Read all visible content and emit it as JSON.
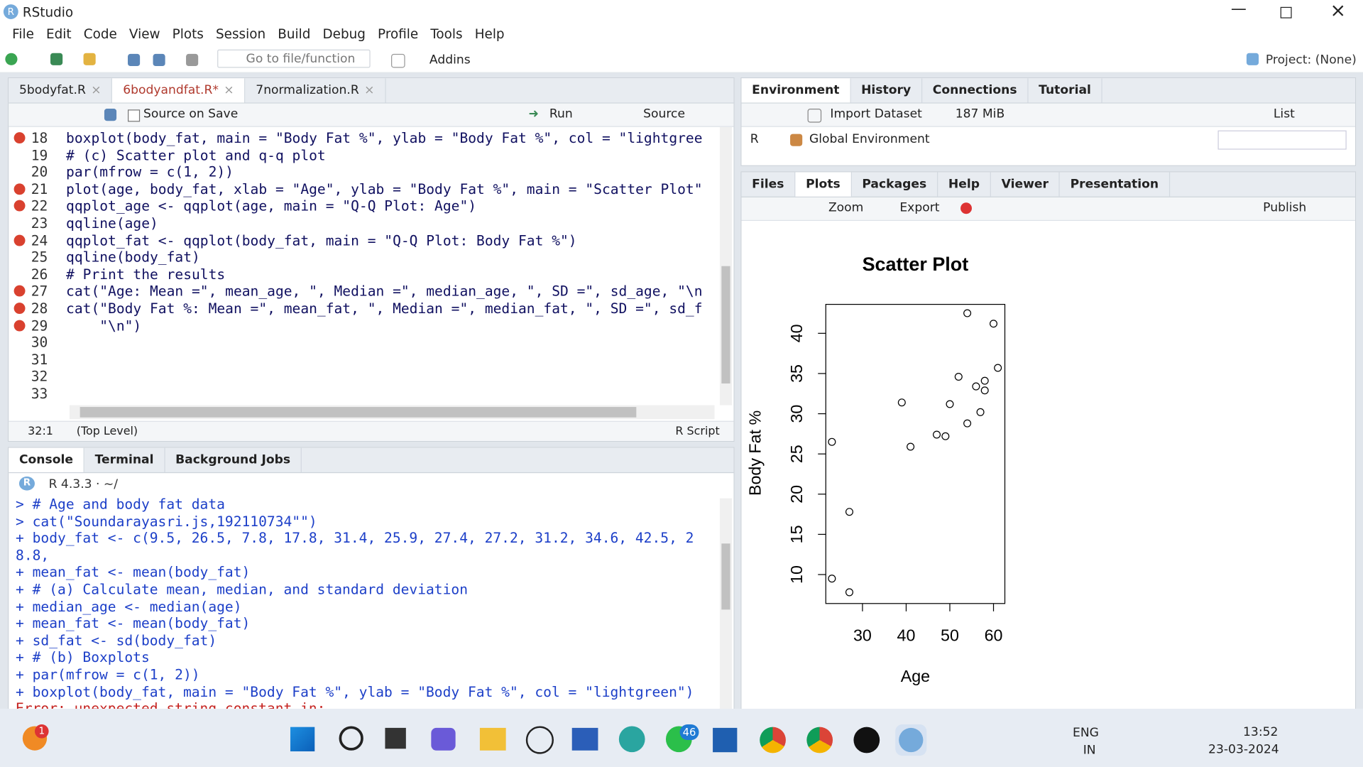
{
  "window": {
    "title": "RStudio",
    "project": "Project: (None)"
  },
  "menu": [
    "File",
    "Edit",
    "Code",
    "View",
    "Plots",
    "Session",
    "Build",
    "Debug",
    "Profile",
    "Tools",
    "Help"
  ],
  "toolbar": {
    "goto": "Go to file/function",
    "addins": "Addins"
  },
  "editor": {
    "tabs": [
      "5bodyfat.R",
      "6bodyandfat.R*",
      "7normalization.R"
    ],
    "active": 1,
    "controls": {
      "source_on_save": "Source on Save",
      "run": "Run",
      "source": "Source"
    },
    "lines": [
      {
        "n": 18,
        "code": "boxplot(body_fat, main = \"Body Fat %\", ylab = \"Body Fat %\", col = \"lightgree",
        "error": true
      },
      {
        "n": 19,
        "code": "# (c) Scatter plot and q-q plot"
      },
      {
        "n": 20,
        "code": "par(mfrow = c(1, 2))"
      },
      {
        "n": 21,
        "code": "plot(age, body_fat, xlab = \"Age\", ylab = \"Body Fat %\", main = \"Scatter Plot\"",
        "error": true
      },
      {
        "n": 22,
        "code": "qqplot_age <- qqplot(age, main = \"Q-Q Plot: Age\")",
        "error": true
      },
      {
        "n": 23,
        "code": "qqline(age)"
      },
      {
        "n": 24,
        "code": "qqplot_fat <- qqplot(body_fat, main = \"Q-Q Plot: Body Fat %\")",
        "error": true
      },
      {
        "n": 25,
        "code": "qqline(body_fat)"
      },
      {
        "n": 26,
        "code": "# Print the results"
      },
      {
        "n": 27,
        "code": "cat(\"Age: Mean =\", mean_age, \", Median =\", median_age, \", SD =\", sd_age, \"\\n",
        "error": true
      },
      {
        "n": 28,
        "code": "cat(\"Body Fat %: Mean =\", mean_fat, \", Median =\", median_fat, \", SD =\", sd_f",
        "error": true
      },
      {
        "n": 29,
        "code": "    \"\\n\")",
        "error": true
      },
      {
        "n": 30
      },
      {
        "n": 31
      },
      {
        "n": 32
      },
      {
        "n": 33
      }
    ],
    "status": {
      "position": "32:1",
      "scope": "(Top Level)",
      "filetype": "R Script"
    }
  },
  "console": {
    "tabs": [
      "Console",
      "Terminal",
      "Background Jobs"
    ],
    "version": "R 4.3.3 · ~/",
    "lines": [
      "> # Age and body fat data",
      "> cat(\"Soundarayasri.js,192110734\"\")",
      "+ body_fat <- c(9.5, 26.5, 7.8, 17.8, 31.4, 25.9, 27.4, 27.2, 31.2, 34.6, 42.5, 2",
      "8.8,",
      "+ mean_fat <- mean(body_fat)",
      "+ # (a) Calculate mean, median, and standard deviation",
      "+ median_age <- median(age)",
      "+ mean_fat <- mean(body_fat)",
      "+ sd_fat <- sd(body_fat)",
      "+ # (b) Boxplots",
      "+ par(mfrow = c(1, 2))",
      "+ boxplot(body_fat, main = \"Body Fat %\", ylab = \"Body Fat %\", col = \"lightgreen\")"
    ],
    "error": "Error: unexpected string constant in:"
  },
  "environment": {
    "tabs": [
      "Environment",
      "History",
      "Connections",
      "Tutorial"
    ],
    "import": "Import Dataset",
    "memory": "187 MiB",
    "view": "List",
    "language": "R",
    "scope": "Global Environment"
  },
  "files": {
    "tabs": [
      "Files",
      "Plots",
      "Packages",
      "Help",
      "Viewer",
      "Presentation"
    ],
    "active": 1,
    "zoom": "Zoom",
    "export": "Export",
    "publish": "Publish"
  },
  "chart_data": {
    "type": "scatter",
    "title": "Scatter Plot",
    "x_label": "Age",
    "y_label": "Body Fat %",
    "color": "#000000",
    "x": [
      23,
      27,
      23,
      27,
      39,
      41,
      47,
      49,
      50,
      52,
      54,
      54,
      56,
      58,
      58,
      57,
      60,
      61
    ],
    "y": [
      26.5,
      17.8,
      9.5,
      7.8,
      31.4,
      25.9,
      27.4,
      27.2,
      31.2,
      34.6,
      42.5,
      28.8,
      33.4,
      34.1,
      32.9,
      30.2,
      41.2,
      35.7
    ],
    "xlim": [
      21.6,
      62.6
    ],
    "ylim": [
      6.4,
      43.6
    ],
    "xticks": [
      30,
      40,
      50,
      60
    ],
    "yticks": [
      10,
      15,
      20,
      25,
      30,
      35,
      40
    ]
  },
  "taskbar": {
    "notifications": "1",
    "whatsapp_badge": "46",
    "language": [
      "ENG",
      "IN"
    ],
    "time": "13:52",
    "date": "23-03-2024"
  }
}
